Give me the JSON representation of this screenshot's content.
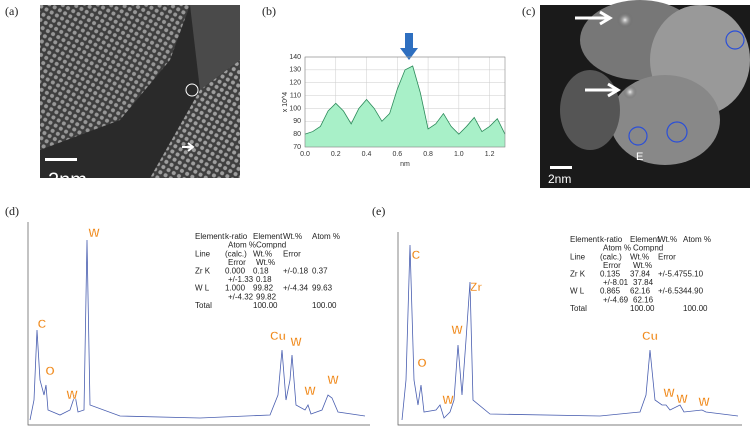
{
  "panels": {
    "a": {
      "label": "(a)",
      "scale": "2nm"
    },
    "b": {
      "label": "(b)"
    },
    "c": {
      "label": "(c)",
      "scale": "2nm",
      "marker": "E"
    },
    "d": {
      "label": "(d)",
      "peaks": [
        "C",
        "O",
        "W",
        "W",
        "Cu",
        "W",
        "W",
        "W"
      ],
      "table": {
        "rows": [
          [
            "Element",
            "k-ratio",
            "Element",
            "Wt.%",
            "Atom %"
          ],
          [
            null,
            "Atom %",
            "Compnd",
            null,
            null
          ],
          [
            "Line",
            "(calc.)",
            "Wt.%",
            "Error",
            null
          ],
          [
            null,
            "Error",
            "Wt.%",
            null,
            null
          ],
          [
            "Zr K",
            "0.000",
            "0.18",
            "+/-0.18",
            "0.37"
          ],
          [
            null,
            "+/-1.33",
            "0.18",
            null,
            null
          ],
          [
            "W L",
            "1.000",
            "99.82",
            "+/-4.34",
            "99.63"
          ],
          [
            null,
            "+/-4.32",
            "99.82",
            null,
            null
          ],
          [
            "Total",
            null,
            "100.00",
            null,
            "100.00"
          ]
        ]
      }
    },
    "e": {
      "label": "(e)",
      "peaks": [
        "C",
        "O",
        "W",
        "W",
        "Zr",
        "Cu",
        "W",
        "W",
        "W"
      ],
      "table": {
        "rows": [
          [
            "Element",
            "k-ratio",
            "Element",
            "Wt.%",
            "Atom %"
          ],
          [
            null,
            "Atom %",
            "Compnd",
            null,
            null
          ],
          [
            "Line",
            "(calc.)",
            "Wt.%",
            "Error",
            null
          ],
          [
            null,
            "Error",
            "Wt.%",
            null,
            null
          ],
          [
            "Zr K",
            "0.135",
            "37.84",
            "+/-5.47",
            "55.10"
          ],
          [
            null,
            "+/-8.01",
            "37.84",
            null,
            null
          ],
          [
            "W L",
            "0.865",
            "62.16",
            "+/-6.53",
            "44.90"
          ],
          [
            null,
            "+/-4.69",
            "62.16",
            null,
            null
          ],
          [
            "Total",
            null,
            "100.00",
            null,
            "100.00"
          ]
        ]
      }
    }
  },
  "chart_data": {
    "type": "area",
    "xlabel": "nm",
    "ylabel": "x 10^4",
    "color": "#a8f0c8",
    "x": [
      0,
      0.05,
      0.1,
      0.15,
      0.2,
      0.25,
      0.3,
      0.35,
      0.4,
      0.45,
      0.5,
      0.55,
      0.6,
      0.65,
      0.7,
      0.75,
      0.8,
      0.85,
      0.9,
      0.95,
      1.0,
      1.05,
      1.1,
      1.15,
      1.2,
      1.25,
      1.3
    ],
    "values": [
      80,
      82,
      86,
      98,
      104,
      98,
      88,
      100,
      107,
      100,
      90,
      96,
      115,
      130,
      133,
      112,
      84,
      88,
      96,
      86,
      80,
      86,
      93,
      82,
      86,
      92,
      80
    ],
    "xlim": [
      0,
      1.3
    ],
    "ylim": [
      70,
      140
    ],
    "xticks": [
      {
        "value": 0,
        "label": "0.0"
      },
      0.2,
      0.4,
      0.6,
      0.8,
      {
        "value": 1,
        "label": "1.0"
      },
      1.2
    ],
    "yticks": [
      70,
      80,
      90,
      100,
      110,
      120,
      130,
      140
    ],
    "grid": true
  }
}
